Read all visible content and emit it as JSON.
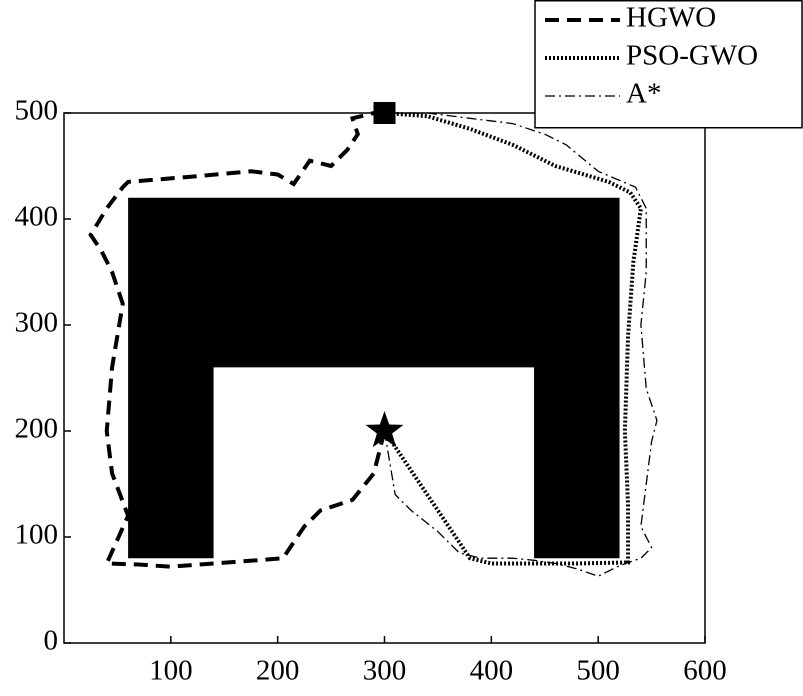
{
  "chart_data": {
    "type": "line",
    "xlim": [
      0,
      600
    ],
    "ylim": [
      0,
      500
    ],
    "xticks": [
      100,
      200,
      300,
      400,
      500,
      600
    ],
    "yticks": [
      0,
      100,
      200,
      300,
      400,
      500
    ],
    "legend": "top-right",
    "obstacles": [
      {
        "color": "#000000",
        "x": [
          60,
          520,
          520,
          440,
          440,
          140,
          140,
          60
        ],
        "y": [
          420,
          420,
          80,
          80,
          260,
          260,
          80,
          80
        ]
      }
    ],
    "start": {
      "x": 300,
      "y": 200
    },
    "goal": {
      "x": 300,
      "y": 500
    },
    "series": [
      {
        "name": "HGWO",
        "color": "#000000",
        "style": "dashed",
        "x": [
          300,
          290,
          270,
          240,
          225,
          205,
          180,
          140,
          100,
          70,
          40,
          60,
          45,
          40,
          45,
          55,
          45,
          35,
          25,
          40,
          55,
          60,
          120,
          175,
          200,
          215,
          230,
          250,
          265,
          275,
          270,
          290,
          300
        ],
        "values": [
          200,
          160,
          135,
          125,
          110,
          80,
          78,
          75,
          72,
          74,
          75,
          120,
          160,
          200,
          260,
          320,
          350,
          370,
          385,
          410,
          430,
          435,
          440,
          445,
          442,
          433,
          455,
          450,
          465,
          480,
          495,
          500,
          500
        ]
      },
      {
        "name": "PSO-GWO",
        "color": "#000000",
        "style": "dotted",
        "x": [
          300,
          320,
          340,
          360,
          380,
          400,
          440,
          480,
          528,
          528,
          525,
          528,
          533,
          540,
          530,
          510,
          460,
          420,
          380,
          340,
          300
        ],
        "values": [
          200,
          170,
          140,
          110,
          80,
          75,
          75,
          75,
          76,
          130,
          200,
          290,
          360,
          410,
          425,
          435,
          450,
          470,
          485,
          497,
          500
        ]
      },
      {
        "name": "A*",
        "color": "#000000",
        "style": "dashdot",
        "x": [
          300,
          310,
          325,
          350,
          370,
          390,
          420,
          440,
          460,
          480,
          500,
          520,
          540,
          550,
          540,
          545,
          550,
          555,
          545,
          540,
          545,
          545,
          535,
          500,
          470,
          450,
          420,
          380,
          340,
          300
        ],
        "values": [
          200,
          140,
          125,
          105,
          85,
          80,
          80,
          78,
          75,
          70,
          63,
          73,
          80,
          90,
          110,
          150,
          190,
          210,
          240,
          300,
          350,
          410,
          430,
          445,
          470,
          480,
          490,
          495,
          500,
          500
        ]
      }
    ]
  }
}
